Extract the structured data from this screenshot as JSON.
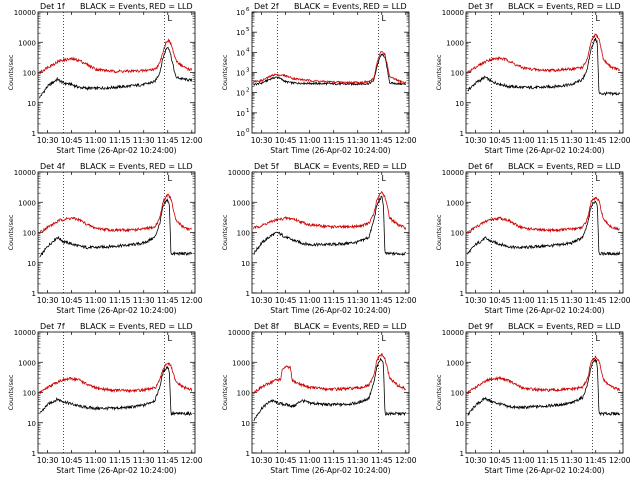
{
  "figure": {
    "xlabel": "Start Time (26-Apr-02 10:24:00)",
    "ylabel": "Counts/sec"
  },
  "legend": {
    "black": "BLACK = Events,",
    "red": "RED = LLD"
  },
  "colors": {
    "events": "#000000",
    "lld": "#cc0000",
    "axis": "#000000"
  },
  "x_ticks": [
    "10:30",
    "10:45",
    "11:00",
    "11:15",
    "11:30",
    "11:45",
    "12:00"
  ],
  "x_tick_minutes": [
    630,
    645,
    660,
    675,
    690,
    705,
    720
  ],
  "x_range_minutes": [
    624,
    722
  ],
  "marker_minutes": [
    640,
    703
  ],
  "marker_label": "L",
  "y_ticks_decimal": [
    "1",
    "10",
    "100",
    "1000",
    "10000"
  ],
  "y_ticks_exp": [
    "10",
    "10",
    "10",
    "10",
    "10",
    "10",
    "10"
  ],
  "y_ticks_exp_powers": [
    "0",
    "1",
    "2",
    "3",
    "4",
    "5",
    "6"
  ],
  "chart_data": [
    {
      "type": "line",
      "title": "Det 1f",
      "panel": "det-1f",
      "ylim": [
        1,
        10000
      ],
      "y_style": "decimal",
      "dropout": 706,
      "series": [
        {
          "name": "BLACK = Events",
          "color": "#000000",
          "x": [
            625,
            630,
            636,
            640,
            645,
            650,
            655,
            660,
            670,
            680,
            690,
            697,
            700,
            702,
            704,
            705,
            706,
            710,
            715,
            720
          ],
          "y": [
            15,
            35,
            60,
            45,
            40,
            32,
            30,
            30,
            32,
            35,
            40,
            50,
            100,
            300,
            600,
            700,
            600,
            70,
            60,
            55
          ]
        },
        {
          "name": "RED = LLD",
          "color": "#cc0000",
          "x": [
            625,
            630,
            638,
            645,
            650,
            655,
            660,
            670,
            680,
            690,
            697,
            700,
            702,
            704,
            705,
            707,
            710,
            715,
            720
          ],
          "y": [
            100,
            150,
            250,
            280,
            250,
            180,
            130,
            110,
            110,
            115,
            130,
            200,
            500,
            1000,
            1200,
            900,
            250,
            150,
            120
          ]
        }
      ]
    },
    {
      "type": "line",
      "title": "Det 2f",
      "panel": "det-2f",
      "ylim": [
        1,
        1000000
      ],
      "y_style": "exp",
      "dropout": 708,
      "series": [
        {
          "name": "BLACK = Events",
          "color": "#000000",
          "x": [
            625,
            630,
            636,
            640,
            645,
            650,
            660,
            670,
            680,
            690,
            697,
            700,
            702,
            704,
            705,
            707,
            710,
            715,
            720
          ],
          "y": [
            250,
            300,
            500,
            600,
            350,
            300,
            290,
            280,
            270,
            270,
            280,
            400,
            2000,
            6000,
            8000,
            6000,
            300,
            280,
            260
          ]
        },
        {
          "name": "RED = LLD",
          "color": "#cc0000",
          "x": [
            625,
            630,
            638,
            645,
            650,
            660,
            670,
            680,
            690,
            697,
            700,
            702,
            704,
            705,
            707,
            710,
            715,
            720
          ],
          "y": [
            350,
            400,
            800,
            700,
            500,
            400,
            350,
            330,
            320,
            350,
            500,
            3000,
            9000,
            11000,
            8000,
            600,
            400,
            300
          ]
        }
      ]
    },
    {
      "type": "line",
      "title": "Det 3f",
      "panel": "det-3f",
      "ylim": [
        1,
        10000
      ],
      "y_style": "decimal",
      "dropout": 707,
      "series": [
        {
          "name": "BLACK = Events",
          "color": "#000000",
          "x": [
            625,
            630,
            636,
            640,
            645,
            650,
            660,
            670,
            680,
            690,
            697,
            700,
            702,
            704,
            705,
            706,
            707,
            710,
            715,
            720
          ],
          "y": [
            25,
            45,
            70,
            50,
            42,
            35,
            32,
            32,
            35,
            40,
            60,
            150,
            600,
            1100,
            1300,
            900,
            20,
            20,
            20,
            20
          ]
        },
        {
          "name": "RED = LLD",
          "color": "#cc0000",
          "x": [
            625,
            630,
            638,
            645,
            650,
            655,
            660,
            670,
            680,
            690,
            697,
            700,
            702,
            704,
            705,
            707,
            710,
            715,
            720
          ],
          "y": [
            100,
            150,
            260,
            300,
            260,
            180,
            140,
            120,
            120,
            130,
            150,
            300,
            1000,
            1600,
            1800,
            1300,
            250,
            150,
            120
          ]
        }
      ]
    },
    {
      "type": "line",
      "title": "Det 4f",
      "panel": "det-4f",
      "ylim": [
        1,
        10000
      ],
      "y_style": "decimal",
      "dropout": 706,
      "series": [
        {
          "name": "BLACK = Events",
          "color": "#000000",
          "x": [
            625,
            630,
            636,
            640,
            645,
            650,
            655,
            660,
            670,
            680,
            690,
            697,
            700,
            702,
            704,
            705,
            706,
            707,
            710,
            715,
            720
          ],
          "y": [
            15,
            35,
            70,
            50,
            42,
            35,
            32,
            32,
            35,
            38,
            45,
            70,
            200,
            700,
            1100,
            1200,
            800,
            20,
            20,
            20,
            20
          ]
        },
        {
          "name": "RED = LLD",
          "color": "#cc0000",
          "x": [
            625,
            630,
            638,
            645,
            650,
            655,
            660,
            670,
            680,
            690,
            697,
            700,
            702,
            704,
            705,
            707,
            710,
            715,
            720
          ],
          "y": [
            100,
            150,
            260,
            300,
            260,
            180,
            140,
            120,
            120,
            130,
            150,
            300,
            1000,
            1600,
            1800,
            1300,
            250,
            150,
            120
          ]
        }
      ]
    },
    {
      "type": "line",
      "title": "Det 5f",
      "panel": "det-5f",
      "ylim": [
        1,
        10000
      ],
      "y_style": "decimal",
      "dropout": 707,
      "series": [
        {
          "name": "BLACK = Events",
          "color": "#000000",
          "x": [
            625,
            630,
            636,
            640,
            645,
            650,
            655,
            660,
            670,
            680,
            690,
            697,
            700,
            702,
            704,
            705,
            706,
            707,
            710,
            715,
            720
          ],
          "y": [
            20,
            45,
            80,
            100,
            70,
            55,
            45,
            40,
            40,
            42,
            48,
            70,
            250,
            800,
            1300,
            1500,
            900,
            20,
            20,
            20,
            20
          ]
        },
        {
          "name": "RED = LLD",
          "color": "#cc0000",
          "x": [
            625,
            630,
            638,
            645,
            650,
            655,
            660,
            670,
            680,
            690,
            697,
            700,
            702,
            704,
            705,
            707,
            710,
            715,
            720
          ],
          "y": [
            140,
            170,
            250,
            300,
            280,
            220,
            180,
            160,
            150,
            160,
            200,
            400,
            1200,
            2000,
            2200,
            1500,
            300,
            180,
            140
          ]
        }
      ]
    },
    {
      "type": "line",
      "title": "Det 6f",
      "panel": "det-6f",
      "ylim": [
        1,
        10000
      ],
      "y_style": "decimal",
      "dropout": 707,
      "series": [
        {
          "name": "BLACK = Events",
          "color": "#000000",
          "x": [
            625,
            630,
            636,
            640,
            645,
            650,
            655,
            660,
            670,
            680,
            690,
            697,
            700,
            702,
            704,
            705,
            706,
            707,
            710,
            715,
            720
          ],
          "y": [
            20,
            40,
            65,
            50,
            42,
            35,
            32,
            32,
            35,
            38,
            45,
            70,
            200,
            700,
            1000,
            1100,
            800,
            20,
            20,
            20,
            20
          ]
        },
        {
          "name": "RED = LLD",
          "color": "#cc0000",
          "x": [
            625,
            630,
            638,
            645,
            650,
            655,
            660,
            670,
            680,
            690,
            697,
            700,
            702,
            704,
            705,
            707,
            710,
            715,
            720
          ],
          "y": [
            100,
            150,
            260,
            300,
            260,
            180,
            140,
            120,
            120,
            130,
            150,
            300,
            1000,
            1300,
            1400,
            1100,
            250,
            150,
            120
          ]
        }
      ]
    },
    {
      "type": "line",
      "title": "Det 7f",
      "panel": "det-7f",
      "ylim": [
        1,
        10000
      ],
      "y_style": "decimal",
      "dropout": 706,
      "series": [
        {
          "name": "BLACK = Events",
          "color": "#000000",
          "x": [
            625,
            630,
            636,
            640,
            645,
            650,
            655,
            660,
            670,
            680,
            690,
            697,
            700,
            702,
            704,
            705,
            706,
            707,
            710,
            715,
            720
          ],
          "y": [
            20,
            40,
            60,
            50,
            42,
            35,
            32,
            30,
            30,
            32,
            38,
            55,
            150,
            450,
            650,
            700,
            500,
            20,
            20,
            20,
            20
          ]
        },
        {
          "name": "RED = LLD",
          "color": "#cc0000",
          "x": [
            625,
            630,
            638,
            645,
            650,
            655,
            660,
            670,
            680,
            690,
            697,
            700,
            702,
            704,
            705,
            707,
            710,
            715,
            720
          ],
          "y": [
            100,
            150,
            250,
            290,
            260,
            180,
            140,
            120,
            115,
            120,
            140,
            250,
            600,
            900,
            950,
            750,
            220,
            150,
            120
          ]
        }
      ]
    },
    {
      "type": "line",
      "title": "Det 8f",
      "panel": "det-8f",
      "ylim": [
        1,
        10000
      ],
      "y_style": "decimal",
      "dropout": 707,
      "series": [
        {
          "name": "BLACK = Events",
          "color": "#000000",
          "x": [
            625,
            630,
            636,
            640,
            645,
            650,
            655,
            660,
            670,
            680,
            690,
            697,
            700,
            702,
            704,
            705,
            706,
            707,
            710,
            715,
            720
          ],
          "y": [
            12,
            30,
            55,
            45,
            40,
            35,
            55,
            45,
            40,
            40,
            45,
            65,
            200,
            700,
            1200,
            1300,
            900,
            20,
            20,
            20,
            20
          ]
        },
        {
          "name": "RED = LLD",
          "color": "#cc0000",
          "x": [
            625,
            630,
            638,
            642,
            643,
            645,
            648,
            649,
            650,
            655,
            660,
            670,
            680,
            690,
            697,
            700,
            702,
            704,
            705,
            707,
            710,
            715,
            720
          ],
          "y": [
            100,
            150,
            250,
            280,
            600,
            700,
            650,
            260,
            230,
            180,
            150,
            130,
            130,
            140,
            170,
            350,
            1200,
            1700,
            1800,
            1300,
            300,
            170,
            130
          ]
        }
      ]
    },
    {
      "type": "line",
      "title": "Det 9f",
      "panel": "det-9f",
      "ylim": [
        1,
        10000
      ],
      "y_style": "decimal",
      "dropout": 707,
      "series": [
        {
          "name": "BLACK = Events",
          "color": "#000000",
          "x": [
            625,
            630,
            636,
            640,
            645,
            650,
            655,
            660,
            670,
            680,
            690,
            697,
            700,
            702,
            704,
            705,
            706,
            707,
            710,
            715,
            720
          ],
          "y": [
            18,
            38,
            65,
            50,
            42,
            35,
            32,
            32,
            35,
            38,
            45,
            70,
            200,
            700,
            1100,
            1200,
            800,
            20,
            20,
            20,
            20
          ]
        },
        {
          "name": "RED = LLD",
          "color": "#cc0000",
          "x": [
            625,
            630,
            638,
            645,
            650,
            655,
            660,
            670,
            680,
            690,
            697,
            700,
            702,
            704,
            705,
            707,
            710,
            715,
            720
          ],
          "y": [
            100,
            150,
            260,
            300,
            260,
            180,
            140,
            120,
            120,
            130,
            150,
            300,
            1000,
            1400,
            1500,
            1100,
            250,
            150,
            120
          ]
        }
      ]
    }
  ]
}
